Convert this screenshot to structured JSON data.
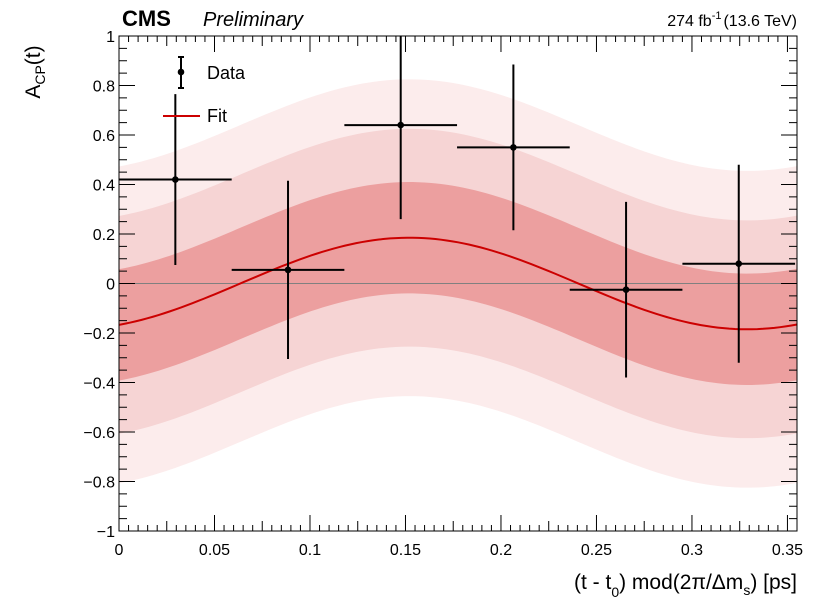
{
  "header": {
    "experiment": "CMS",
    "status": "Preliminary",
    "lumi_value": "274 fb",
    "lumi_exp": "-1",
    "energy": "(13.6 TeV)"
  },
  "chart_data": {
    "type": "scatter",
    "title": "",
    "xlabel_parts": {
      "main": "(t - t",
      "sub": "0",
      "mid": ") mod(2π/Δm",
      "sub2": "s",
      "end": ") [ps]"
    },
    "ylabel_parts": {
      "main": "A",
      "sub": "CP",
      "end": "(t)"
    },
    "xlim": [
      0,
      0.355
    ],
    "ylim": [
      -1,
      1
    ],
    "x_ticks": [
      0,
      0.05,
      0.1,
      0.15,
      0.2,
      0.25,
      0.3,
      0.35
    ],
    "x_tick_labels": [
      "0",
      "0.05",
      "0.1",
      "0.15",
      "0.2",
      "0.25",
      "0.3",
      "0.35"
    ],
    "y_ticks": [
      -1,
      -0.8,
      -0.6,
      -0.4,
      -0.2,
      0,
      0.2,
      0.4,
      0.6,
      0.8,
      1
    ],
    "y_tick_labels": [
      "−1",
      "−0.8",
      "−0.6",
      "−0.4",
      "−0.2",
      "0",
      "0.2",
      "0.4",
      "0.6",
      "0.8",
      "1"
    ],
    "legend": {
      "position": "top-left",
      "entries": [
        "Data",
        "Fit"
      ]
    },
    "series": [
      {
        "name": "Data",
        "points": [
          {
            "x": 0.0295,
            "y": 0.42,
            "xerr": 0.0295,
            "yup": 0.345,
            "ydn": 0.345
          },
          {
            "x": 0.0885,
            "y": 0.055,
            "xerr": 0.0295,
            "yup": 0.36,
            "ydn": 0.36
          },
          {
            "x": 0.1475,
            "y": 0.64,
            "xerr": 0.0295,
            "yup": 0.38,
            "ydn": 0.38
          },
          {
            "x": 0.2065,
            "y": 0.55,
            "xerr": 0.0295,
            "yup": 0.335,
            "ydn": 0.335
          },
          {
            "x": 0.2655,
            "y": -0.025,
            "xerr": 0.0295,
            "yup": 0.355,
            "ydn": 0.355
          },
          {
            "x": 0.3245,
            "y": 0.08,
            "xerr": 0.0295,
            "yup": 0.4,
            "ydn": 0.4
          }
        ]
      },
      {
        "name": "Fit",
        "function": "sine",
        "amplitude": 0.185,
        "center": 0.152,
        "period": 0.354,
        "band1_halfwidth": 0.225,
        "band2_halfwidth": 0.44,
        "band3_halfwidth": 0.64
      }
    ],
    "colors": {
      "fit_line": "#cc0000",
      "band1": "#ec9f9f",
      "band2": "#f6d4d4",
      "band3": "#fcecec",
      "points": "#000000",
      "zero_line": "#808080"
    }
  }
}
